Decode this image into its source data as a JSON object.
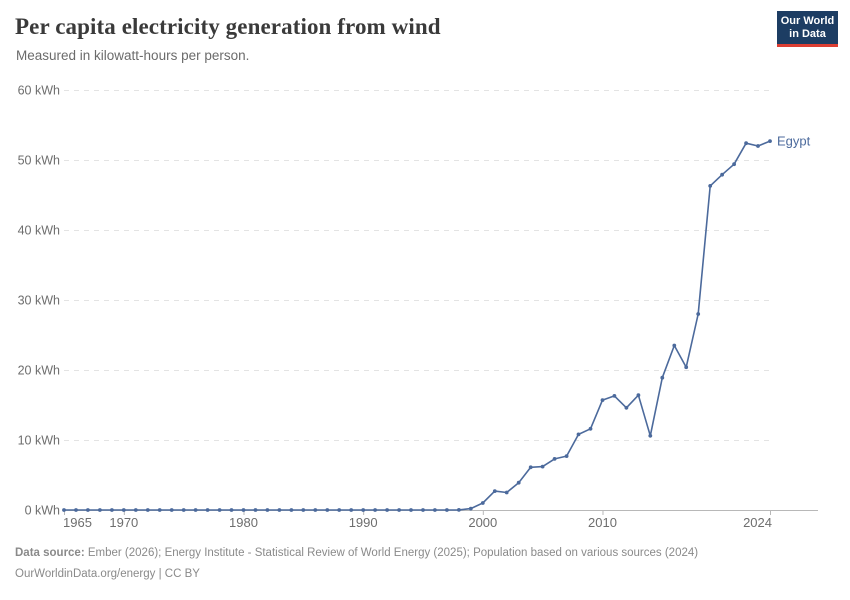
{
  "header": {
    "title": "Per capita electricity generation from wind",
    "subtitle": "Measured in kilowatt-hours per person.",
    "logo": {
      "line1": "Our World",
      "line2": "in Data",
      "bg": "#1d3d63",
      "accent": "#dc3e33"
    }
  },
  "chart_data": {
    "type": "line",
    "title": "Per capita electricity generation from wind",
    "ylabel": "kWh per person",
    "xlabel": "",
    "grid": "horizontal-dashed",
    "legend_position": "end-of-line",
    "xlim": [
      1965,
      2028
    ],
    "ylim": [
      0,
      60
    ],
    "x_ticks": [
      1965,
      1970,
      1980,
      1990,
      2000,
      2010,
      2024
    ],
    "y_ticks": [
      0,
      10,
      20,
      30,
      40,
      50,
      60
    ],
    "y_tick_labels": [
      "0 kWh",
      "10 kWh",
      "20 kWh",
      "30 kWh",
      "40 kWh",
      "50 kWh",
      "60 kWh"
    ],
    "x": [
      1965,
      1966,
      1967,
      1968,
      1969,
      1970,
      1971,
      1972,
      1973,
      1974,
      1975,
      1976,
      1977,
      1978,
      1979,
      1980,
      1981,
      1982,
      1983,
      1984,
      1985,
      1986,
      1987,
      1988,
      1989,
      1990,
      1991,
      1992,
      1993,
      1994,
      1995,
      1996,
      1997,
      1998,
      1999,
      2000,
      2001,
      2002,
      2003,
      2004,
      2005,
      2006,
      2007,
      2008,
      2009,
      2010,
      2011,
      2012,
      2013,
      2014,
      2015,
      2016,
      2017,
      2018,
      2019,
      2020,
      2021,
      2022,
      2023,
      2024
    ],
    "series": [
      {
        "name": "Egypt",
        "color": "#4c6a9c",
        "values": [
          0,
          0,
          0,
          0,
          0,
          0,
          0,
          0,
          0,
          0,
          0,
          0,
          0,
          0,
          0,
          0,
          0,
          0,
          0,
          0,
          0,
          0,
          0,
          0,
          0,
          0,
          0,
          0,
          0,
          0,
          0,
          0,
          0,
          0.02,
          0.2,
          1.0,
          2.7,
          2.5,
          3.9,
          6.1,
          6.2,
          7.3,
          7.7,
          10.8,
          11.6,
          15.7,
          16.3,
          14.6,
          16.4,
          10.6,
          18.9,
          23.5,
          20.4,
          28.0,
          46.3,
          47.9,
          49.4,
          52.4,
          52.0,
          52.7
        ]
      }
    ]
  },
  "footer": {
    "source_label": "Data source:",
    "source_text": " Ember (2026); Energy Institute - Statistical Review of World Energy (2025); Population based on various sources (2024)",
    "link_line": "OurWorldinData.org/energy | CC BY"
  }
}
